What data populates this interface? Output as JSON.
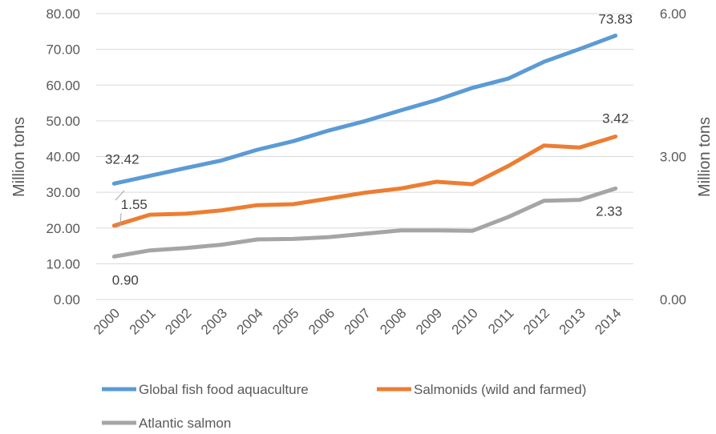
{
  "chart_data": {
    "type": "line",
    "x": [
      "2000",
      "2001",
      "2002",
      "2003",
      "2004",
      "2005",
      "2006",
      "2007",
      "2008",
      "2009",
      "2010",
      "2011",
      "2012",
      "2013",
      "2014"
    ],
    "series": [
      {
        "name": "Global fish food aquaculture",
        "axis": "left",
        "color": "#5b9bd5",
        "values": [
          32.42,
          34.6,
          36.8,
          38.9,
          41.9,
          44.3,
          47.3,
          49.9,
          52.9,
          55.8,
          59.2,
          61.8,
          66.5,
          70.1,
          73.83
        ]
      },
      {
        "name": "Salmonids (wild and farmed)",
        "axis": "right",
        "color": "#ed7d31",
        "values": [
          1.55,
          1.78,
          1.8,
          1.87,
          1.98,
          2.0,
          2.12,
          2.24,
          2.33,
          2.47,
          2.42,
          2.8,
          3.23,
          3.19,
          3.42
        ]
      },
      {
        "name": "Atlantic salmon",
        "axis": "right",
        "color": "#a5a5a5",
        "values": [
          0.9,
          1.03,
          1.08,
          1.15,
          1.26,
          1.27,
          1.31,
          1.38,
          1.45,
          1.45,
          1.44,
          1.73,
          2.07,
          2.09,
          2.33
        ]
      }
    ],
    "y_left": {
      "label": "Million tons",
      "min": 0,
      "max": 80,
      "ticks": [
        "0.00",
        "10.00",
        "20.00",
        "30.00",
        "40.00",
        "50.00",
        "60.00",
        "70.00",
        "80.00"
      ]
    },
    "y_right": {
      "label": "Million tons",
      "min": 0,
      "max": 6,
      "ticks": [
        "0.00",
        "3.00",
        "6.00"
      ]
    },
    "data_labels": [
      {
        "series": 0,
        "index": 0,
        "text": "32.42"
      },
      {
        "series": 0,
        "index": 14,
        "text": "73.83"
      },
      {
        "series": 1,
        "index": 0,
        "text": "1.55"
      },
      {
        "series": 1,
        "index": 14,
        "text": "3.42"
      },
      {
        "series": 2,
        "index": 0,
        "text": "0.90"
      },
      {
        "series": 2,
        "index": 14,
        "text": "2.33"
      }
    ],
    "grid": true,
    "legend_position": "bottom"
  }
}
